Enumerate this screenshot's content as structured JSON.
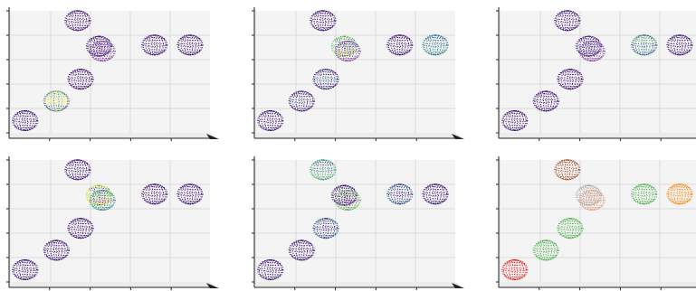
{
  "figure": {
    "rows": 2,
    "cols": 3
  },
  "chart_data": [
    {
      "type": "scatter",
      "projection": "3d",
      "grid": true,
      "title": "",
      "xlabel": "",
      "ylabel": "",
      "colormap": "viridis",
      "spheres": [
        {
          "x": 0.5,
          "y": 0.5,
          "colors": [
            "#3b0f70",
            "#3b0f70"
          ]
        },
        {
          "x": 1.6,
          "y": 1.3,
          "colors": [
            "#3e4a89",
            "#26828e",
            "#6ece58",
            "#fde725"
          ]
        },
        {
          "x": 2.45,
          "y": 2.2,
          "colors": [
            "#3b0f70"
          ]
        },
        {
          "x": 3.1,
          "y": 3.55,
          "colors": [
            "#3b0f70"
          ]
        },
        {
          "x": 3.22,
          "y": 3.35,
          "colors": [
            "#7e4e9e"
          ]
        },
        {
          "x": 2.35,
          "y": 4.6,
          "colors": [
            "#3b0f70"
          ]
        },
        {
          "x": 5.05,
          "y": 3.6,
          "colors": [
            "#3b0f70"
          ]
        },
        {
          "x": 6.3,
          "y": 3.6,
          "colors": [
            "#3b0f70"
          ]
        }
      ]
    },
    {
      "type": "scatter",
      "projection": "3d",
      "grid": true,
      "title": "",
      "xlabel": "",
      "ylabel": "",
      "colormap": "viridis",
      "spheres": [
        {
          "x": 0.5,
          "y": 0.5,
          "colors": [
            "#3b0f70"
          ]
        },
        {
          "x": 1.6,
          "y": 1.3,
          "colors": [
            "#3b0f70",
            "#3e4a89"
          ]
        },
        {
          "x": 2.45,
          "y": 2.2,
          "colors": [
            "#3b0f70",
            "#31688e"
          ]
        },
        {
          "x": 3.1,
          "y": 3.55,
          "colors": [
            "#35b779",
            "#fde725",
            "#26828e"
          ]
        },
        {
          "x": 3.22,
          "y": 3.35,
          "colors": [
            "#7e4e9e"
          ]
        },
        {
          "x": 2.35,
          "y": 4.6,
          "colors": [
            "#3b0f70"
          ]
        },
        {
          "x": 5.05,
          "y": 3.6,
          "colors": [
            "#3b0f70"
          ]
        },
        {
          "x": 6.3,
          "y": 3.6,
          "colors": [
            "#31688e",
            "#1f9e89",
            "#3e4a89"
          ]
        }
      ]
    },
    {
      "type": "scatter",
      "projection": "3d",
      "grid": true,
      "title": "",
      "xlabel": "",
      "ylabel": "",
      "colormap": "viridis",
      "spheres": [
        {
          "x": 0.5,
          "y": 0.5,
          "colors": [
            "#3b0f70"
          ]
        },
        {
          "x": 1.6,
          "y": 1.3,
          "colors": [
            "#3b0f70"
          ]
        },
        {
          "x": 2.45,
          "y": 2.2,
          "colors": [
            "#3b0f70"
          ]
        },
        {
          "x": 3.1,
          "y": 3.55,
          "colors": [
            "#3b0f70",
            "#3e4a89"
          ]
        },
        {
          "x": 3.22,
          "y": 3.35,
          "colors": [
            "#7e4e9e"
          ]
        },
        {
          "x": 2.35,
          "y": 4.6,
          "colors": [
            "#3b0f70"
          ]
        },
        {
          "x": 5.05,
          "y": 3.6,
          "colors": [
            "#31688e",
            "#1f9e89",
            "#6ece58",
            "#3e4a89"
          ]
        },
        {
          "x": 6.3,
          "y": 3.6,
          "colors": [
            "#3b0f70"
          ]
        }
      ]
    },
    {
      "type": "scatter",
      "projection": "3d",
      "grid": true,
      "title": "",
      "xlabel": "",
      "ylabel": "",
      "colormap": "viridis",
      "spheres": [
        {
          "x": 0.5,
          "y": 0.5,
          "colors": [
            "#3b0f70"
          ]
        },
        {
          "x": 1.6,
          "y": 1.3,
          "colors": [
            "#3b0f70"
          ]
        },
        {
          "x": 2.45,
          "y": 2.2,
          "colors": [
            "#3b0f70"
          ]
        },
        {
          "x": 3.1,
          "y": 3.55,
          "colors": [
            "#b5de2b",
            "#fde725",
            "#3e4a89"
          ]
        },
        {
          "x": 3.22,
          "y": 3.35,
          "colors": [
            "#1f9e89",
            "#7e4e9e"
          ]
        },
        {
          "x": 2.35,
          "y": 4.6,
          "colors": [
            "#3b0f70"
          ]
        },
        {
          "x": 5.05,
          "y": 3.6,
          "colors": [
            "#3b0f70"
          ]
        },
        {
          "x": 6.3,
          "y": 3.6,
          "colors": [
            "#3b0f70"
          ]
        }
      ]
    },
    {
      "type": "scatter",
      "projection": "3d",
      "grid": true,
      "title": "",
      "xlabel": "",
      "ylabel": "",
      "colormap": "viridis",
      "spheres": [
        {
          "x": 0.5,
          "y": 0.5,
          "colors": [
            "#3b0f70"
          ]
        },
        {
          "x": 1.6,
          "y": 1.3,
          "colors": [
            "#3b0f70"
          ]
        },
        {
          "x": 2.45,
          "y": 2.2,
          "colors": [
            "#31688e",
            "#3b0f70"
          ]
        },
        {
          "x": 3.1,
          "y": 3.55,
          "colors": [
            "#3b0f70"
          ]
        },
        {
          "x": 3.22,
          "y": 3.35,
          "colors": [
            "#6ece58",
            "#7e4e9e"
          ]
        },
        {
          "x": 2.35,
          "y": 4.6,
          "colors": [
            "#26828e",
            "#6ece58",
            "#3e4a89"
          ]
        },
        {
          "x": 5.05,
          "y": 3.6,
          "colors": [
            "#31688e",
            "#3b0f70"
          ]
        },
        {
          "x": 6.3,
          "y": 3.6,
          "colors": [
            "#3b0f70"
          ]
        }
      ]
    },
    {
      "type": "scatter",
      "projection": "3d",
      "grid": true,
      "title": "",
      "xlabel": "",
      "ylabel": "",
      "colormap": "categorical",
      "spheres": [
        {
          "x": 0.5,
          "y": 0.5,
          "colors": [
            "#e41a1c"
          ]
        },
        {
          "x": 1.6,
          "y": 1.3,
          "colors": [
            "#4daf4a"
          ]
        },
        {
          "x": 2.45,
          "y": 2.2,
          "colors": [
            "#4daf4a"
          ]
        },
        {
          "x": 3.1,
          "y": 3.55,
          "colors": [
            "#aaaaaa"
          ]
        },
        {
          "x": 3.22,
          "y": 3.35,
          "colors": [
            "#e0a080"
          ]
        },
        {
          "x": 2.35,
          "y": 4.6,
          "colors": [
            "#a0522d"
          ]
        },
        {
          "x": 5.05,
          "y": 3.6,
          "colors": [
            "#4daf4a"
          ]
        },
        {
          "x": 6.3,
          "y": 3.6,
          "colors": [
            "#ff7f00"
          ]
        }
      ]
    }
  ]
}
